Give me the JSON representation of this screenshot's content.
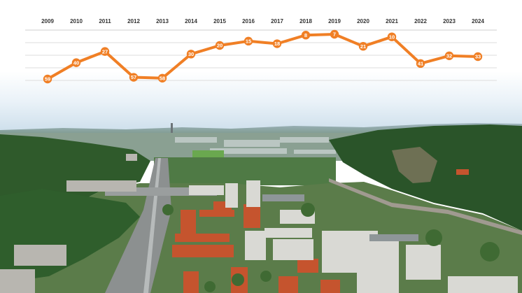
{
  "chart_data": {
    "type": "line",
    "title": "",
    "xlabel": "",
    "ylabel": "",
    "x": [
      "2009",
      "2010",
      "2011",
      "2012",
      "2013",
      "2014",
      "2015",
      "2016",
      "2017",
      "2018",
      "2019",
      "2020",
      "2021",
      "2022",
      "2023",
      "2024"
    ],
    "series": [
      {
        "values": [
          59,
          40,
          27,
          57,
          58,
          30,
          20,
          15,
          18,
          8,
          7,
          21,
          10,
          41,
          32,
          33
        ]
      }
    ],
    "y_inverted": true,
    "ylim": [
      0,
      65
    ],
    "grid": true,
    "legend": "none",
    "line_color": "#f07f25",
    "label_text_color": "#ffffff"
  },
  "background": {
    "description_kind": "aerial-photo",
    "sky_color": "#e8f1f8",
    "forest_color": "#2d5a2a",
    "roof_color": "#c9542d"
  }
}
